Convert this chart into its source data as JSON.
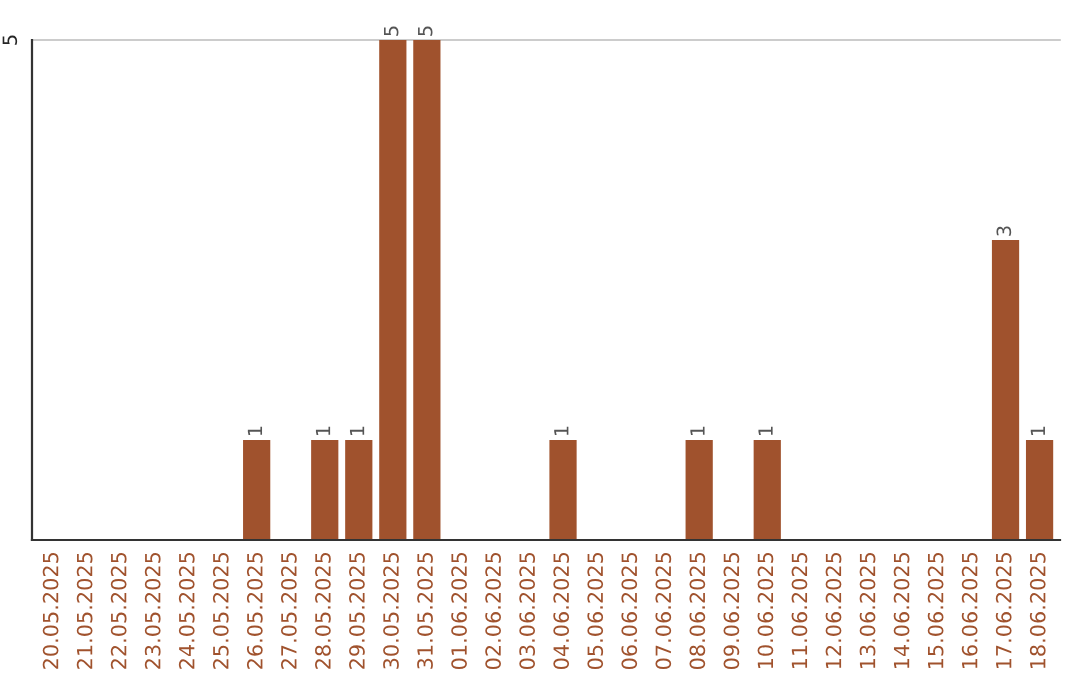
{
  "chart_data": {
    "type": "bar",
    "categories": [
      "20.05.2025",
      "21.05.2025",
      "22.05.2025",
      "23.05.2025",
      "24.05.2025",
      "25.05.2025",
      "26.05.2025",
      "27.05.2025",
      "28.05.2025",
      "29.05.2025",
      "30.05.2025",
      "31.05.2025",
      "01.06.2025",
      "02.06.2025",
      "03.06.2025",
      "04.06.2025",
      "05.06.2025",
      "06.06.2025",
      "07.06.2025",
      "08.06.2025",
      "09.06.2025",
      "10.06.2025",
      "11.06.2025",
      "12.06.2025",
      "13.06.2025",
      "14.06.2025",
      "15.06.2025",
      "16.06.2025",
      "17.06.2025",
      "18.06.2025"
    ],
    "values": [
      0,
      0,
      0,
      0,
      0,
      0,
      1,
      0,
      1,
      1,
      5,
      5,
      0,
      0,
      0,
      1,
      0,
      0,
      0,
      1,
      0,
      1,
      0,
      0,
      0,
      0,
      0,
      0,
      3,
      1
    ],
    "value_labels": [
      null,
      null,
      null,
      null,
      null,
      null,
      "1",
      null,
      "1",
      "1",
      "5",
      "5",
      null,
      null,
      null,
      "1",
      null,
      null,
      null,
      "1",
      null,
      "1",
      null,
      null,
      null,
      null,
      null,
      null,
      "3",
      "1"
    ],
    "color": "#a0522d",
    "ylim": [
      0,
      5
    ],
    "yticks": [
      5
    ],
    "ref_lines": [
      {
        "axis": "y",
        "value": 5,
        "color": "#cccccc"
      }
    ]
  }
}
